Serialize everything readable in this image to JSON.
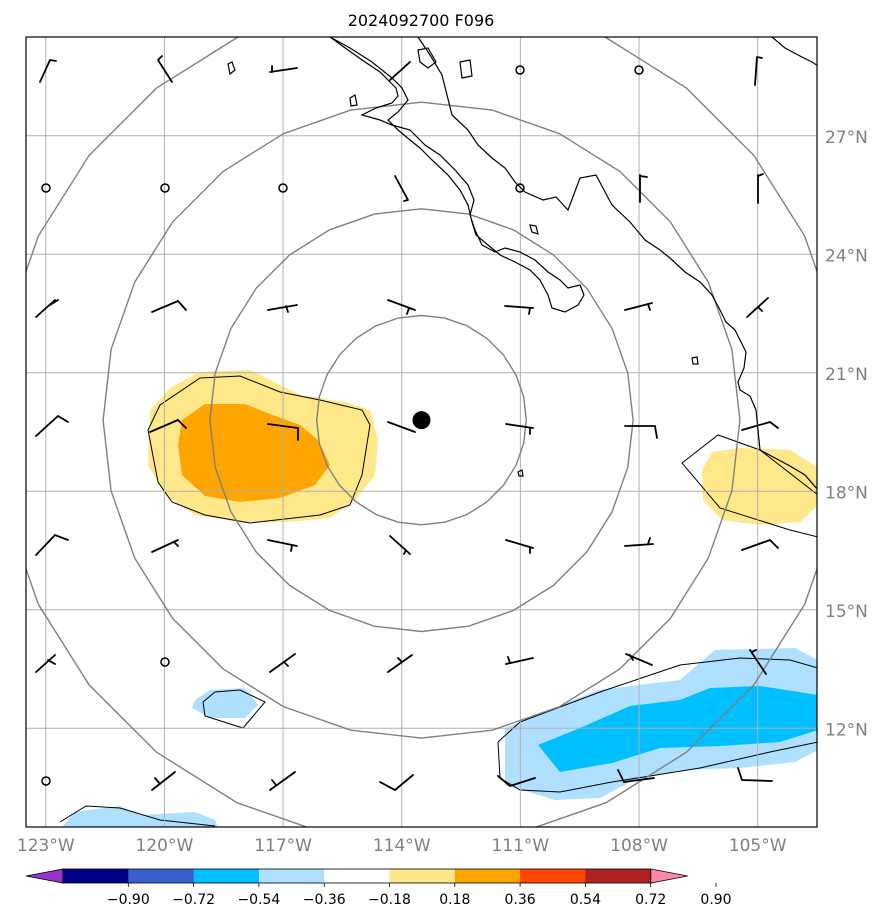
{
  "title": "2024092700 F096",
  "map": {
    "lon_range": [
      -123.5,
      -103.5
    ],
    "lat_range": [
      9.5,
      29.5
    ],
    "lon_ticks": [
      {
        "value": -123,
        "label": "123°W"
      },
      {
        "value": -120,
        "label": "120°W"
      },
      {
        "value": -117,
        "label": "117°W"
      },
      {
        "value": -114,
        "label": "114°W"
      },
      {
        "value": -111,
        "label": "111°W"
      },
      {
        "value": -108,
        "label": "108°W"
      },
      {
        "value": -105,
        "label": "105°W"
      }
    ],
    "lat_ticks": [
      {
        "value": 27,
        "label": "27°N"
      },
      {
        "value": 24,
        "label": "24°N"
      },
      {
        "value": 21,
        "label": "21°N"
      },
      {
        "value": 18,
        "label": "18°N"
      },
      {
        "value": 15,
        "label": "15°N"
      },
      {
        "value": 12,
        "label": "12°N"
      }
    ],
    "gridlines": true,
    "storm_center": {
      "lon": -113.5,
      "lat": 19.8
    },
    "range_rings_deg": [
      2.65,
      5.35,
      8.05,
      10.75
    ]
  },
  "colorbar": {
    "labels": [
      "−0.90",
      "−0.72",
      "−0.54",
      "−0.36",
      "−0.18",
      "0.18",
      "0.36",
      "0.54",
      "0.72",
      "0.90"
    ],
    "colors": [
      "#9933cc",
      "#00008b",
      "#3a5fcd",
      "#00bfff",
      "#b0e0ff",
      "#ffffff",
      "#ffe88a",
      "#ffa500",
      "#ff4500",
      "#b22222",
      "#ff88aa"
    ]
  },
  "colors": {
    "grid": "#b0b0b0",
    "rings": "#808080",
    "tick_text": "#808080",
    "coast": "#000000",
    "yellow": "#ffe88a",
    "orange": "#ffa500",
    "light_blue": "#b0e0ff",
    "deep_sky_blue": "#00bfff"
  }
}
